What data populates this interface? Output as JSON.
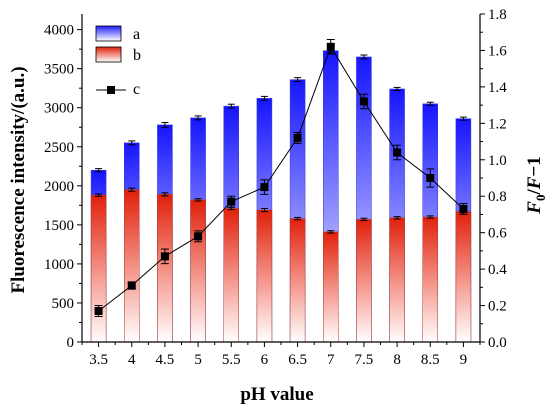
{
  "chart_data": {
    "type": "bar",
    "xlabel": "pH value",
    "ylabel_left": "Fluorescence intensity/(a.u.)",
    "ylabel_right_parts": [
      "F",
      "0",
      "/",
      "F",
      "−1"
    ],
    "categories": [
      "3.5",
      "4",
      "4.5",
      "5",
      "5.5",
      "6",
      "6.5",
      "7",
      "7.5",
      "8",
      "8.5",
      "9"
    ],
    "ylim_left": [
      0,
      4200
    ],
    "yticks_left": [
      "0",
      "500",
      "1000",
      "1500",
      "2000",
      "2500",
      "3000",
      "3500",
      "4000"
    ],
    "ylim_right": [
      0,
      1.8
    ],
    "yticks_right": [
      "0.0",
      "0.2",
      "0.4",
      "0.6",
      "0.8",
      "1.0",
      "1.2",
      "1.4",
      "1.6",
      "1.8"
    ],
    "legend_position": "top-left",
    "series": [
      {
        "name": "a",
        "kind": "bar",
        "axis": "left",
        "color": "#1a1aff",
        "values": [
          2200,
          2550,
          2780,
          2870,
          3020,
          3120,
          3360,
          3730,
          3650,
          3240,
          3050,
          2860
        ],
        "errors": [
          20,
          25,
          30,
          25,
          25,
          25,
          25,
          20,
          25,
          20,
          20,
          20
        ]
      },
      {
        "name": "b",
        "kind": "bar",
        "axis": "left",
        "color": "#e02a10",
        "values": [
          1880,
          1950,
          1890,
          1820,
          1710,
          1690,
          1580,
          1410,
          1570,
          1590,
          1600,
          1670
        ],
        "errors": [
          15,
          20,
          20,
          15,
          15,
          20,
          15,
          15,
          15,
          15,
          15,
          15
        ]
      },
      {
        "name": "c",
        "kind": "line",
        "axis": "right",
        "color": "#000000",
        "values": [
          0.17,
          0.31,
          0.47,
          0.58,
          0.77,
          0.85,
          1.12,
          1.62,
          1.32,
          1.04,
          0.9,
          0.73
        ],
        "errors": [
          0.03,
          0.02,
          0.04,
          0.03,
          0.03,
          0.04,
          0.03,
          0.04,
          0.04,
          0.04,
          0.05,
          0.03
        ]
      }
    ]
  }
}
